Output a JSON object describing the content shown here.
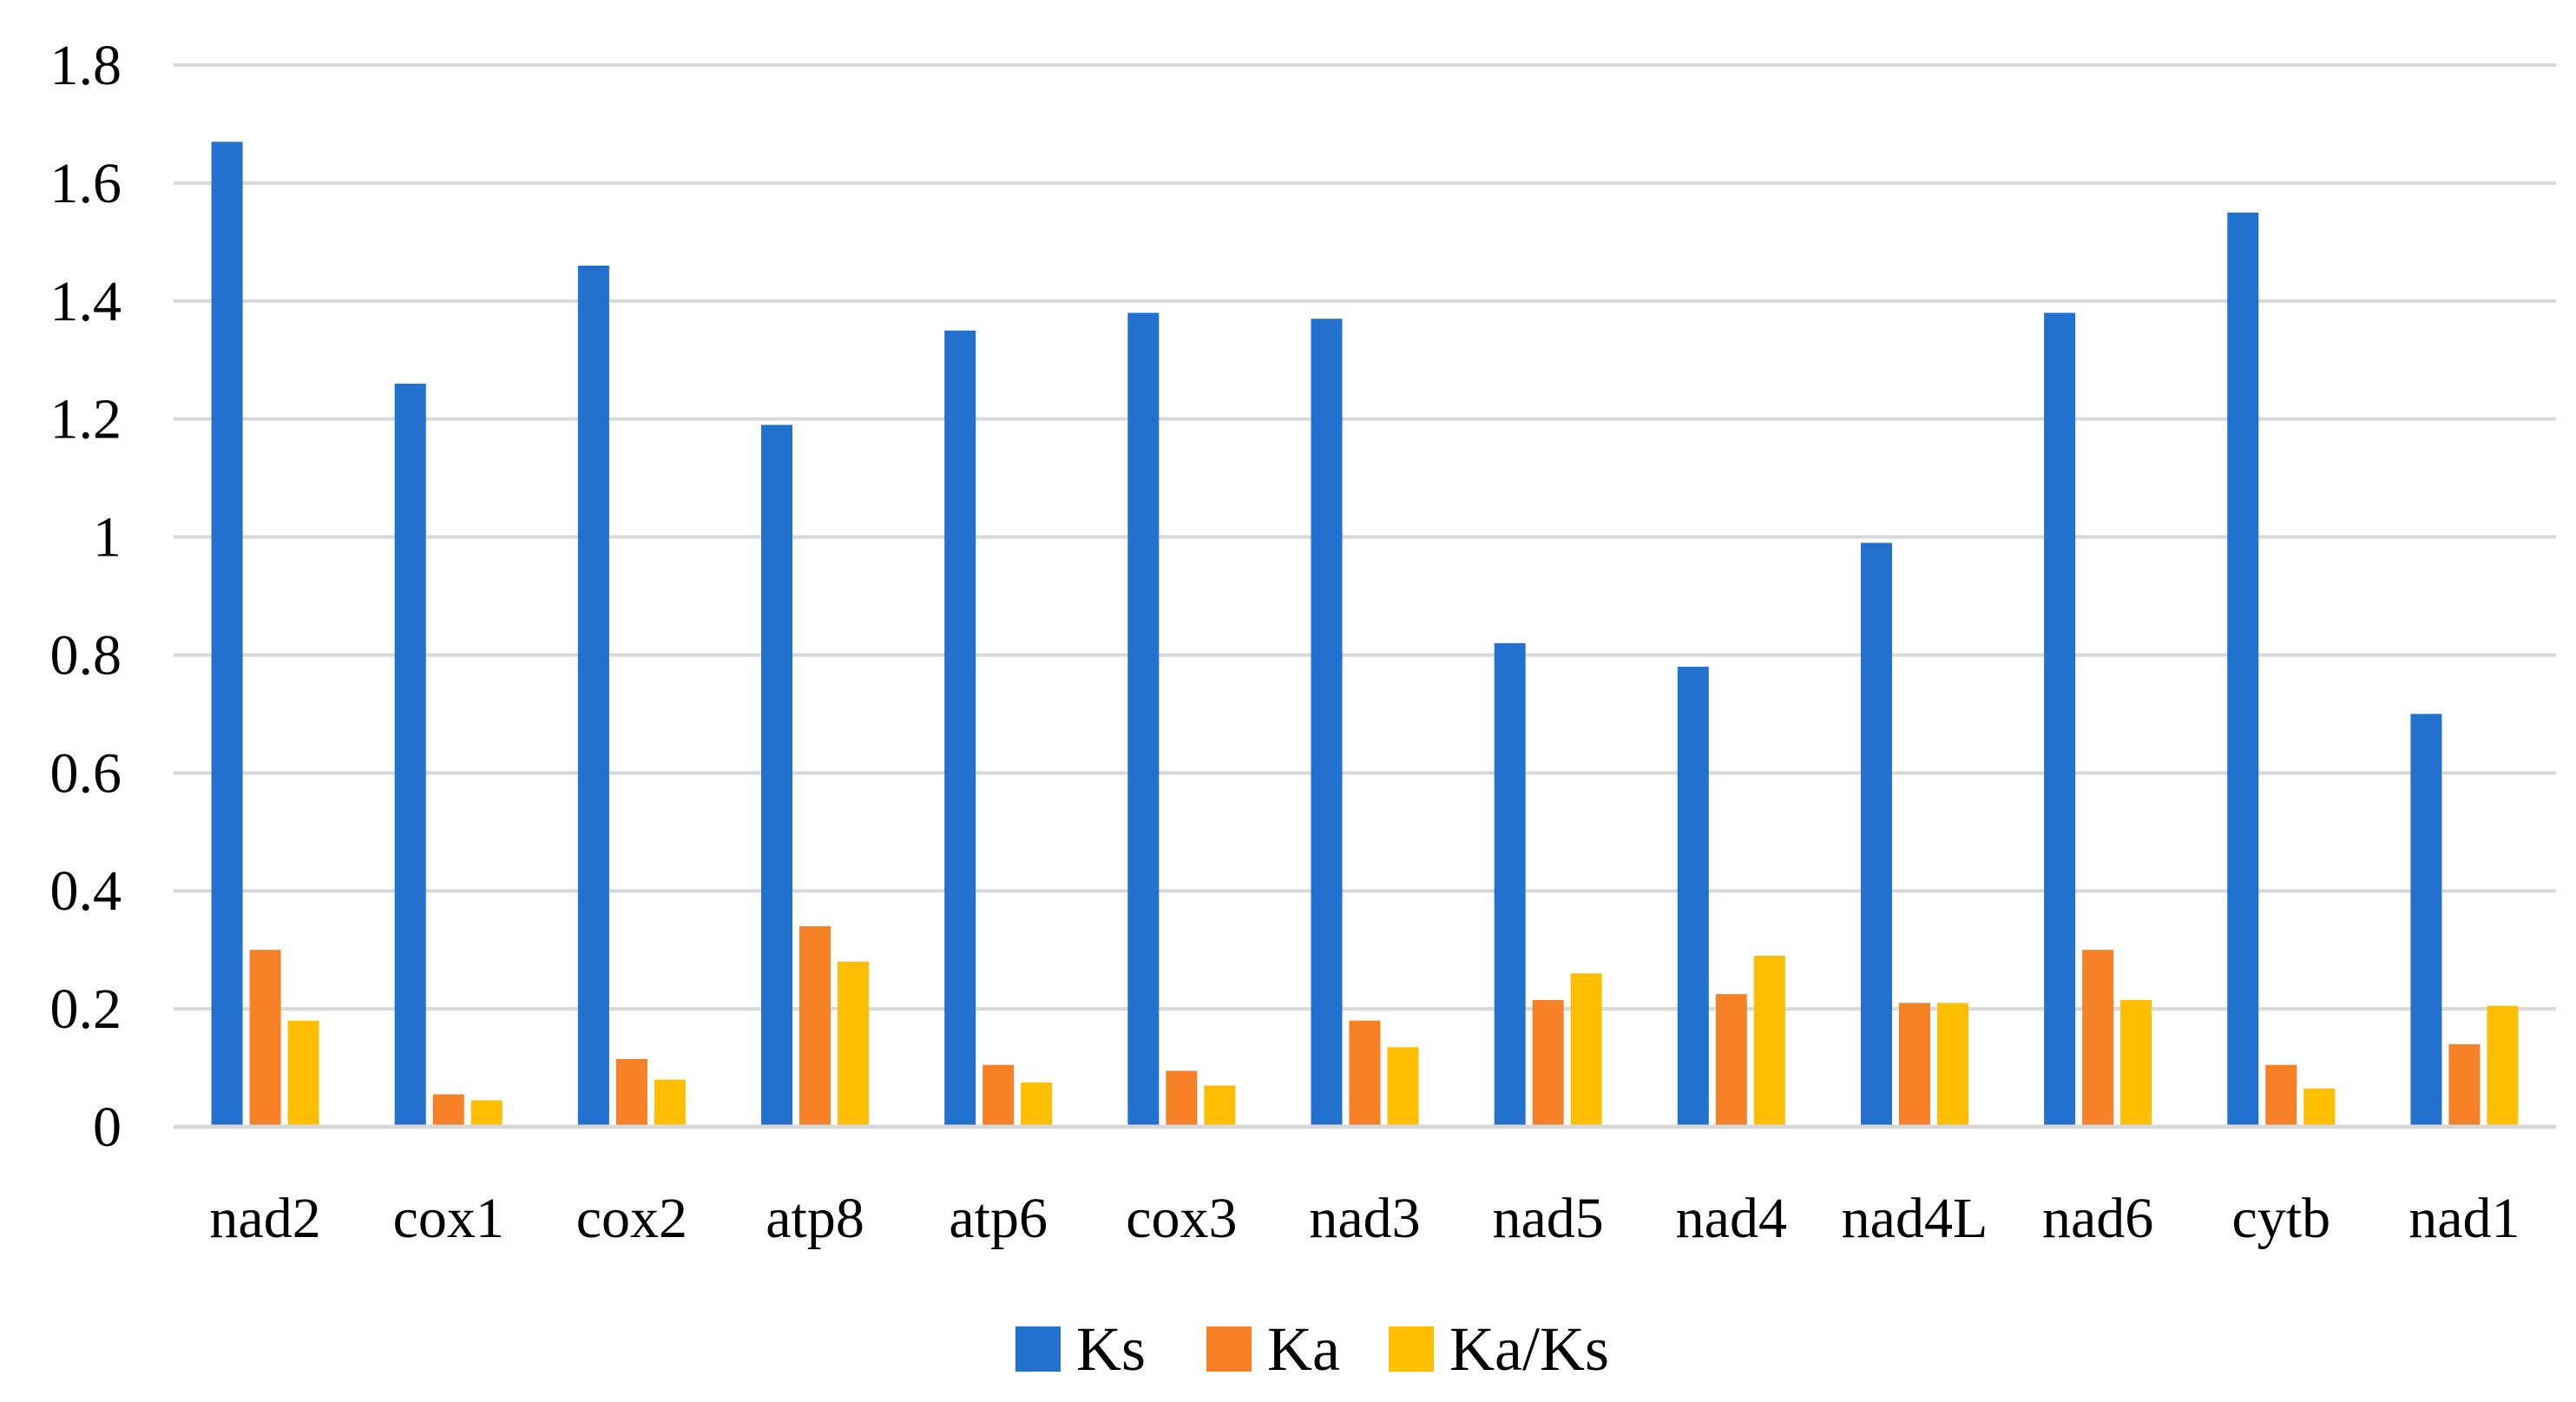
{
  "chart_data": {
    "type": "bar",
    "title": "",
    "xlabel": "",
    "ylabel": "",
    "ylim": [
      0,
      1.8
    ],
    "yticks": [
      0,
      0.2,
      0.4,
      0.6,
      0.8,
      1,
      1.2,
      1.4,
      1.6,
      1.8
    ],
    "ytick_labels": [
      "0",
      "0.2",
      "0.4",
      "0.6",
      "0.8",
      "1",
      "1.2",
      "1.4",
      "1.6",
      "1.8"
    ],
    "grid": true,
    "legend_position": "bottom",
    "categories": [
      "nad2",
      "cox1",
      "cox2",
      "atp8",
      "atp6",
      "cox3",
      "nad3",
      "nad5",
      "nad4",
      "nad4L",
      "nad6",
      "cytb",
      "nad1"
    ],
    "series": [
      {
        "name": "Ks",
        "color": "#2271CE",
        "values": [
          1.67,
          1.26,
          1.46,
          1.19,
          1.35,
          1.38,
          1.37,
          0.82,
          0.78,
          0.99,
          1.38,
          1.55,
          0.7
        ]
      },
      {
        "name": "Ka",
        "color": "#F58026",
        "values": [
          0.3,
          0.055,
          0.115,
          0.34,
          0.105,
          0.095,
          0.18,
          0.215,
          0.225,
          0.21,
          0.3,
          0.105,
          0.14
        ]
      },
      {
        "name": "Ka/Ks",
        "color": "#FFBE00",
        "values": [
          0.18,
          0.045,
          0.08,
          0.28,
          0.075,
          0.07,
          0.135,
          0.26,
          0.29,
          0.21,
          0.215,
          0.065,
          0.205
        ]
      }
    ]
  }
}
